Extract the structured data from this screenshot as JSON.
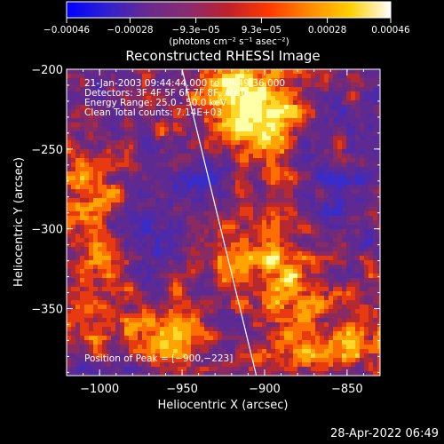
{
  "chart_data": {
    "type": "heatmap",
    "title": "Reconstructed RHESSI Image",
    "xlabel": "Heliocentric X (arcsec)",
    "ylabel": "Heliocentric Y (arcsec)",
    "xlim": [
      -1020,
      -830
    ],
    "ylim": [
      -392,
      -200
    ],
    "xticks": [
      -1000,
      -950,
      -900,
      -850
    ],
    "xtick_labels": [
      "−1000",
      "−950",
      "−900",
      "−850"
    ],
    "yticks": [
      -200,
      -250,
      -300,
      -350
    ],
    "ytick_labels": [
      "−200",
      "−250",
      "−300",
      "−350"
    ],
    "colorbar": {
      "min": -0.00046,
      "max": 0.00046,
      "ticks": [
        -0.00046,
        -0.00028,
        -9.3e-05,
        9.3e-05,
        0.00028,
        0.00046
      ],
      "tick_labels": [
        "−0.00046",
        "−0.00028",
        "−9.3e−05",
        "9.3e−05",
        "0.00028",
        "0.00046"
      ],
      "unit_label": "(photons cm⁻² s⁻¹ asec⁻²)",
      "placement": "top",
      "colormap": [
        "#0000ff",
        "#3020d0",
        "#6a2a8e",
        "#8a2b70",
        "#c0202a",
        "#ff3a00",
        "#ff8a00",
        "#ffd000",
        "#ffffff"
      ]
    },
    "annotations": [
      "21-Jan-2003 09:44:44.000 to 09:49:36.000",
      "Detectors: 3F 4F 5F 6F 7F 8F, Att 0",
      "Energy Range: 25.0 - 50.0 keV",
      "Clean    Total counts: 7.14E+03",
      "Position of Peak = [−900,−223]"
    ],
    "limb_line": {
      "x": [
        -950,
        -905
      ],
      "y": [
        -200,
        -392
      ]
    },
    "peak": {
      "x": -900,
      "y": -223
    },
    "grid": false
  },
  "footer": {
    "timestamp": "28-Apr-2022 06:49"
  }
}
